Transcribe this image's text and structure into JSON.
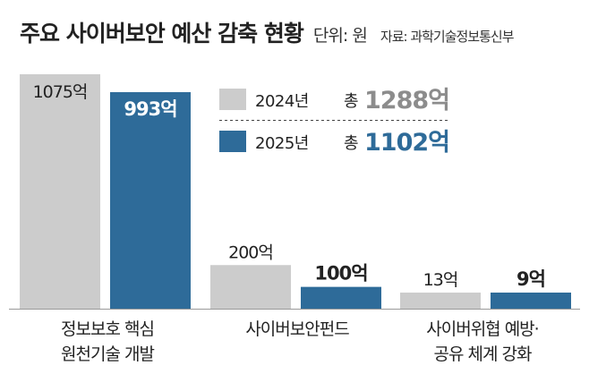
{
  "header": {
    "title": "주요 사이버보안 예산 감축 현황",
    "unit": "단위: 원",
    "source": "자료: 과학기술정보통신부"
  },
  "legend": [
    {
      "label": "2024년",
      "total_prefix": "총",
      "total": "1288억",
      "color": "#cccccc",
      "total_color": "#8c8c8c"
    },
    {
      "label": "2025년",
      "total_prefix": "총",
      "total": "1102억",
      "color": "#2e6b99",
      "total_color": "#2e6b99"
    }
  ],
  "chart_data": {
    "type": "bar",
    "categories": [
      [
        "정보보호 핵심",
        "원천기술 개발"
      ],
      [
        "사이버보안펀드"
      ],
      [
        "사이버위협 예방·",
        "공유 체계 강화"
      ]
    ],
    "series": [
      {
        "name": "2024년",
        "values": [
          1075,
          200,
          13
        ],
        "labels": [
          "1075억",
          "200억",
          "13억"
        ],
        "color": "#cccccc"
      },
      {
        "name": "2025년",
        "values": [
          993,
          100,
          9
        ],
        "labels": [
          "993억",
          "100억",
          "9억"
        ],
        "color": "#2e6b99"
      }
    ],
    "unit": "억",
    "ylim": [
      0,
      1075
    ]
  }
}
